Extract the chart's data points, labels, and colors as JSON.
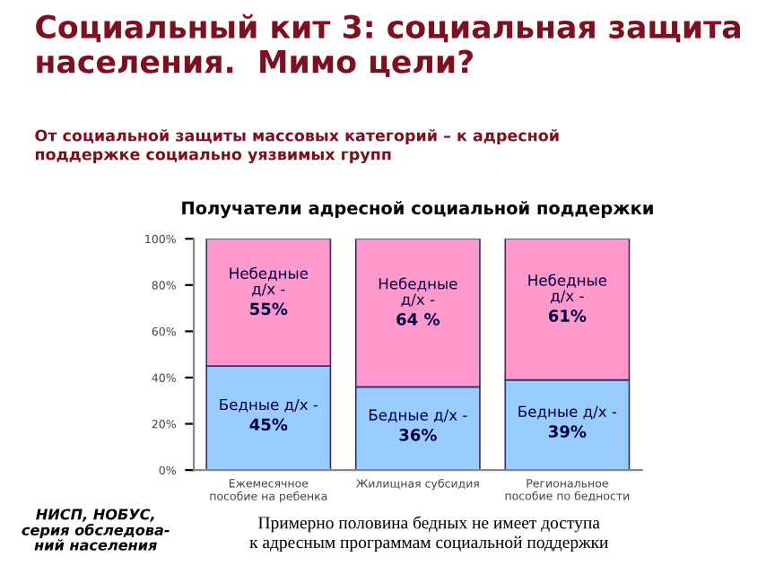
{
  "chart_data": {
    "type": "bar",
    "stacked": true,
    "title": "Социальный кит 3: социальная защита населения.  Мимо цели?",
    "subtitle": "От социальной защиты массовых категорий – к адресной\nподдержке социально уязвимых групп",
    "annotations": [
      "Получатели адресной социальной поддержки",
      "НИСП, НОБУС,\nсерия обследова-\nний населения",
      "Примерно половина бедных не имеет доступа\nк адресным программам социальной поддержки"
    ],
    "categories": [
      "Ежемесячное\nпособие на ребенка",
      "Жилищная субсидия",
      "Региональное\nпособие по бедности"
    ],
    "series": [
      {
        "name": "Бедные д/х -",
        "color": "#99ccff",
        "values": [
          45,
          36,
          39
        ],
        "value_labels": [
          "45%",
          "36%",
          "39%"
        ]
      },
      {
        "name": "Небедные\nд/х -",
        "color": "#ff99cc",
        "values": [
          55,
          64,
          61
        ],
        "value_labels": [
          "55%",
          "64 %",
          "61%"
        ]
      }
    ],
    "ylim": [
      0,
      100
    ],
    "yticks": [
      {
        "value": 0,
        "label": "0%"
      },
      {
        "value": 20,
        "label": "20%"
      },
      {
        "value": 40,
        "label": "40%"
      },
      {
        "value": 60,
        "label": "60%"
      },
      {
        "value": 80,
        "label": "80%"
      },
      {
        "value": 100,
        "label": "100%"
      }
    ],
    "grid": false,
    "legend": false
  }
}
